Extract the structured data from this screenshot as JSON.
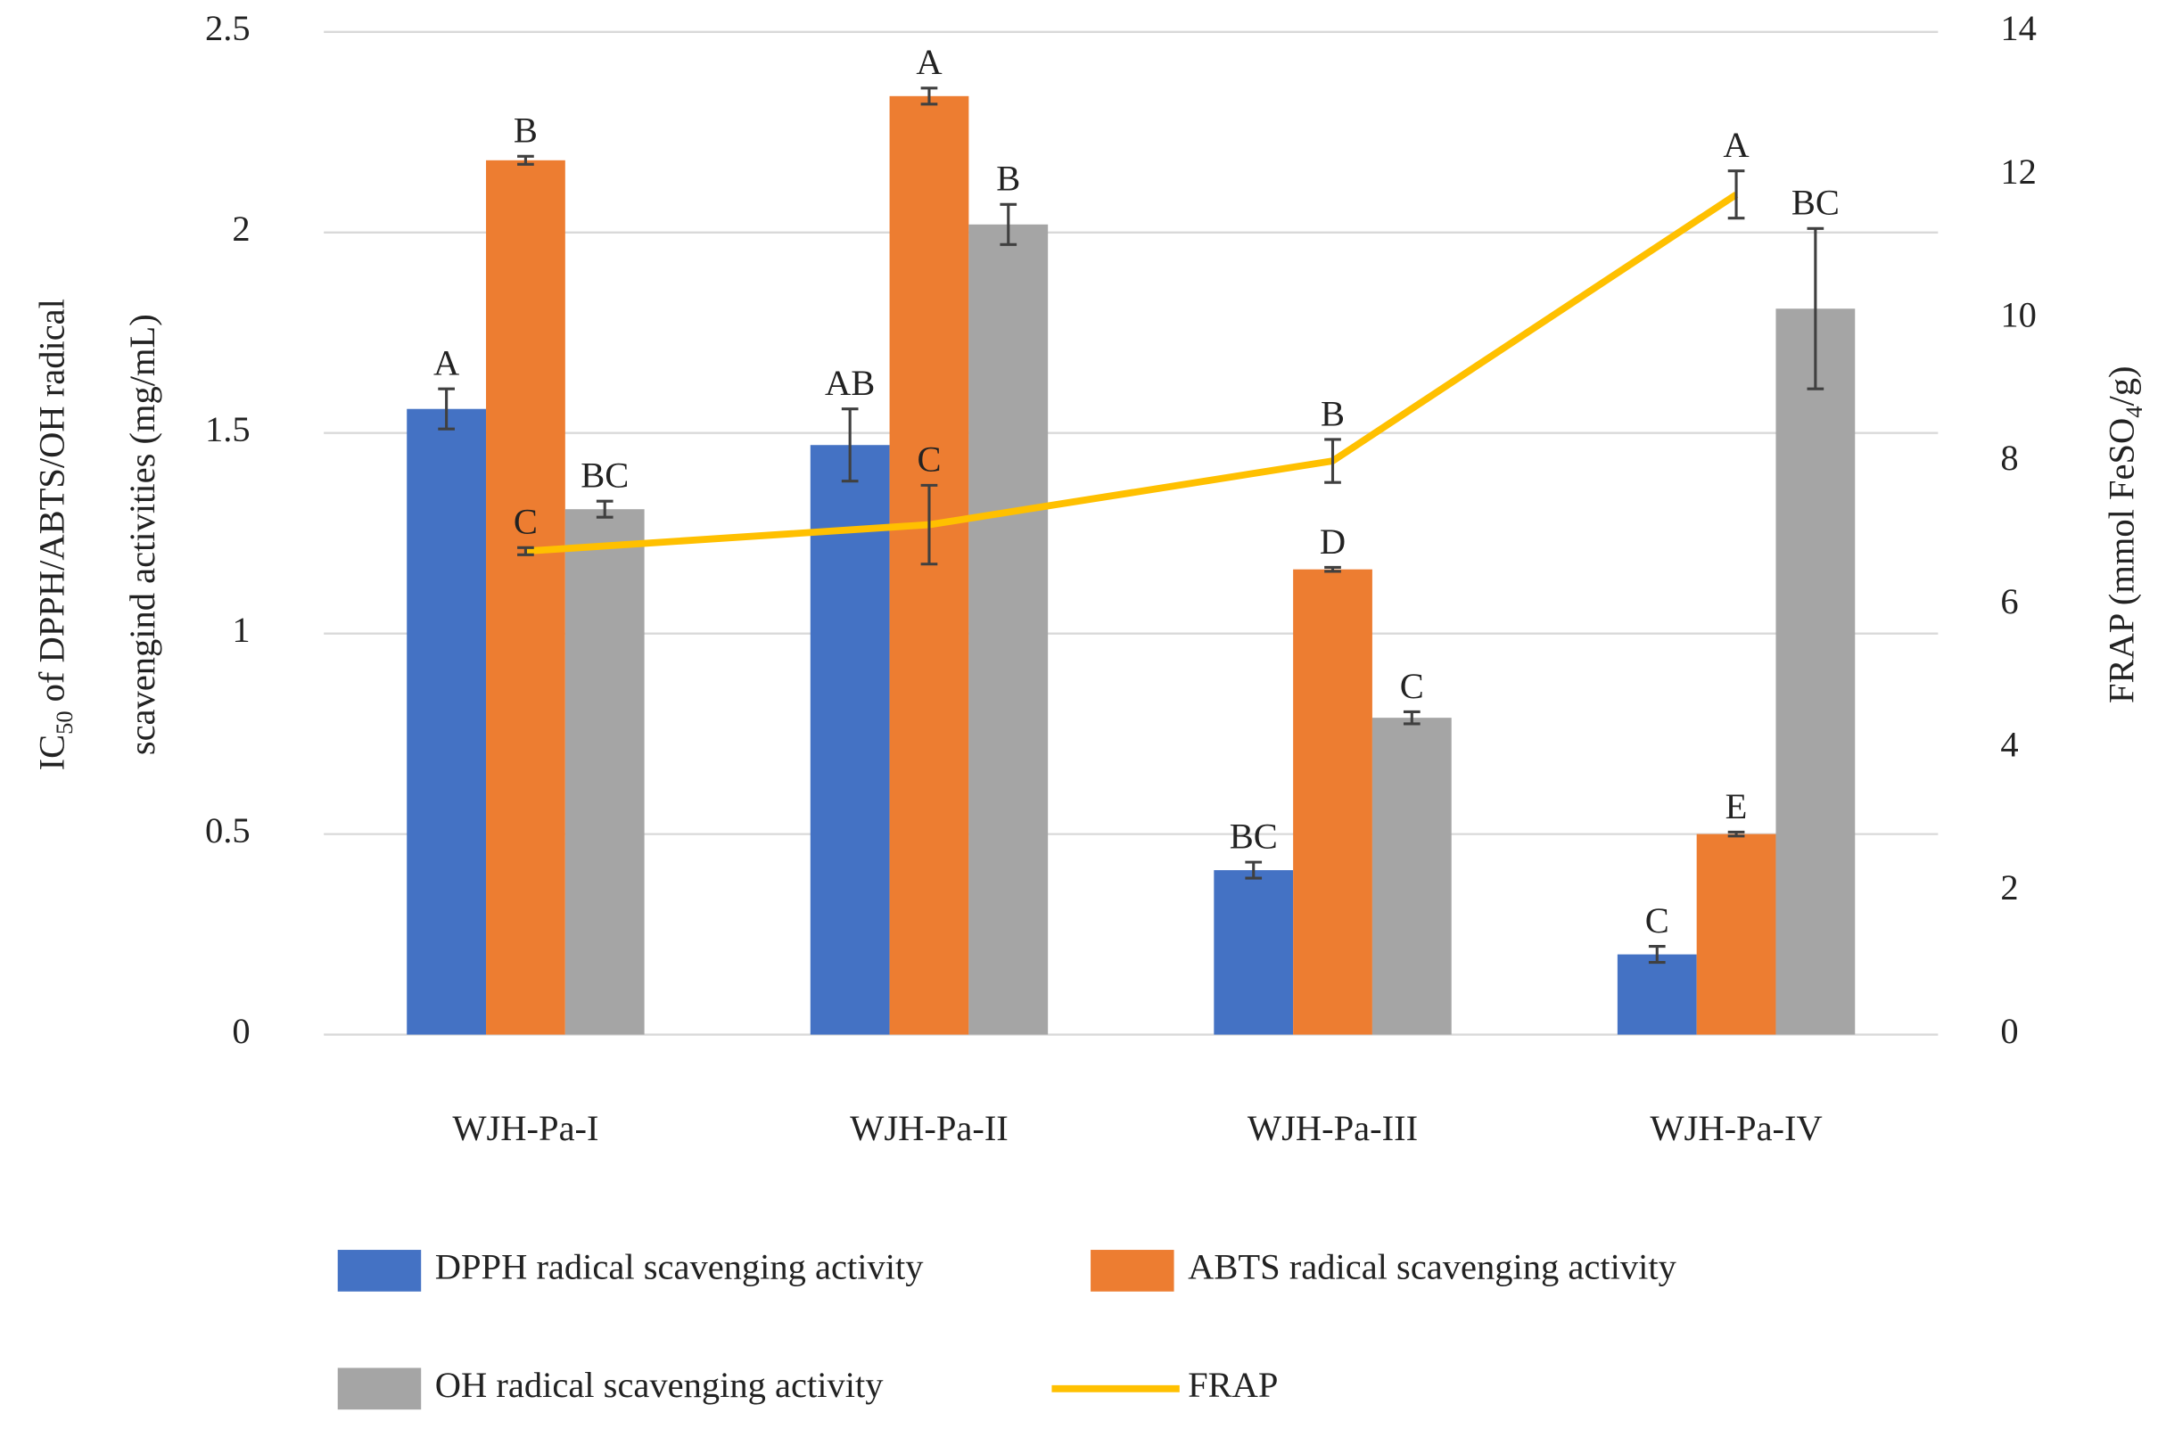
{
  "chart_data": {
    "type": "bar",
    "categories": [
      "WJH-Pa-I",
      "WJH-Pa-II",
      "WJH-Pa-III",
      "WJH-Pa-IV"
    ],
    "y_label": {
      "main": "IC",
      "sub": "50",
      "rest": " of DPPH/ABTS/OH  radical",
      "line2": "scavengind activities (mg/mL)"
    },
    "y2_label": {
      "main": "FRAP (mmol FeSO",
      "sub": "4",
      "rest": "/g)"
    },
    "ylim": [
      0,
      2.5
    ],
    "yticks": [
      0,
      0.5,
      1,
      1.5,
      2,
      2.5
    ],
    "y2lim": [
      0,
      14
    ],
    "y2ticks": [
      0,
      2,
      4,
      6,
      8,
      10,
      12,
      14
    ],
    "grid": true,
    "legend": "bottom",
    "series": [
      {
        "name": "DPPH radical scavenging activity",
        "color": "#4472c4",
        "values": [
          1.56,
          1.47,
          0.41,
          0.2
        ],
        "errors": [
          0.05,
          0.09,
          0.02,
          0.02
        ],
        "significance_labels": [
          "A",
          "AB",
          "BC",
          "C"
        ]
      },
      {
        "name": "ABTS radical scavenging activity",
        "color": "#ed7d31",
        "values": [
          2.18,
          2.34,
          1.16,
          0.5
        ],
        "errors": [
          0.01,
          0.02,
          0.005,
          0.005
        ],
        "significance_labels": [
          "B",
          "A",
          "D",
          "E"
        ]
      },
      {
        "name": "OH radical scavenging activity",
        "color": "#a5a5a5",
        "values": [
          1.31,
          2.02,
          0.79,
          1.81
        ],
        "errors": [
          0.02,
          0.05,
          0.015,
          0.2
        ],
        "significance_labels": [
          "BC",
          "B",
          "C",
          "BC"
        ]
      },
      {
        "name": "FRAP",
        "color": "#ffc000",
        "axis": "y2",
        "values": [
          6.75,
          7.12,
          8.01,
          11.73
        ],
        "errors": [
          0.05,
          0.55,
          0.3,
          0.33
        ],
        "significance_labels": [
          "C",
          "C",
          "B",
          "A"
        ]
      }
    ]
  }
}
